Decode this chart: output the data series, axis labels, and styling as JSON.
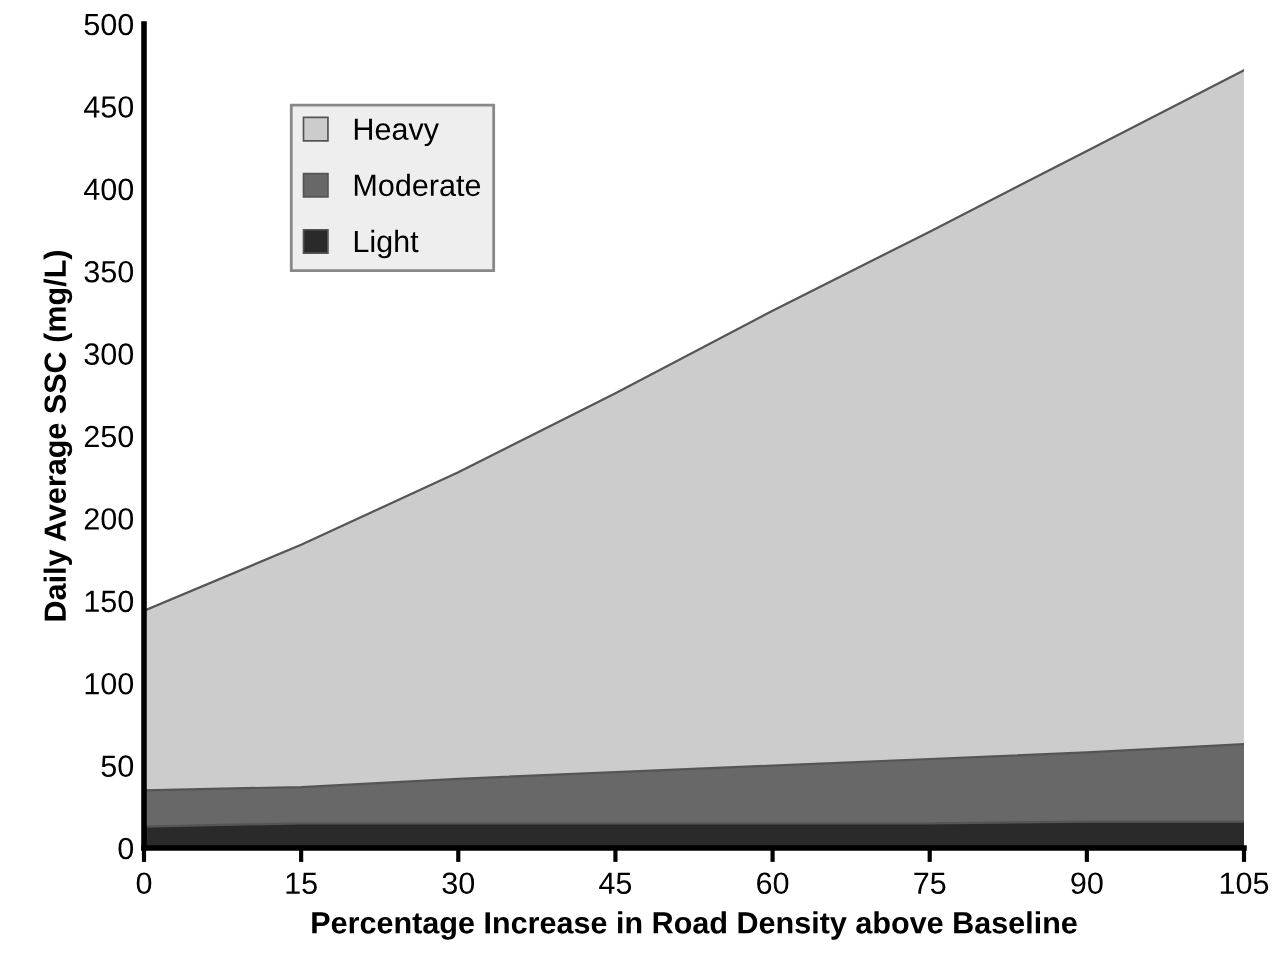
{
  "chart_data": {
    "type": "area",
    "xlabel": "Percentage Increase in Road Density above Baseline",
    "ylabel": "Daily Average SSC (mg/L)",
    "x": [
      0,
      15,
      30,
      45,
      60,
      75,
      90,
      105
    ],
    "series": [
      {
        "name": "Heavy",
        "color": "#cccccc",
        "values": [
          144,
          184,
          228,
          276,
          326,
          374,
          423,
          472
        ]
      },
      {
        "name": "Moderate",
        "color": "#686868",
        "values": [
          35,
          37,
          42,
          46,
          50,
          54,
          58,
          63
        ]
      },
      {
        "name": "Light",
        "color": "#2a2a2a",
        "values": [
          13,
          15,
          15,
          15,
          15,
          15,
          16,
          16
        ]
      }
    ],
    "xlim": [
      0,
      105
    ],
    "xticks": [
      0,
      15,
      30,
      45,
      60,
      75,
      90,
      105
    ],
    "ylim": [
      0,
      500
    ],
    "yticks": [
      0,
      50,
      100,
      150,
      200,
      250,
      300,
      350,
      400,
      450,
      500
    ],
    "grid": false,
    "legend": "top left"
  }
}
